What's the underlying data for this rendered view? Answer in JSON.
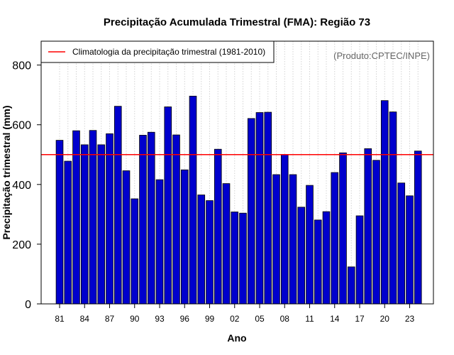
{
  "chart_data": {
    "type": "bar",
    "title": "Precipitação Acumulada Trimestral (FMA): Região 73",
    "xlabel": "Ano",
    "ylabel": "Precipitação trimestral (mm)",
    "ylim": [
      0,
      880
    ],
    "yticks": [
      0,
      200,
      400,
      600,
      800
    ],
    "categories": [
      "81",
      "82",
      "83",
      "84",
      "85",
      "86",
      "87",
      "88",
      "89",
      "90",
      "91",
      "92",
      "93",
      "94",
      "95",
      "96",
      "97",
      "98",
      "99",
      "00",
      "01",
      "02",
      "03",
      "04",
      "05",
      "06",
      "07",
      "08",
      "09",
      "10",
      "11",
      "12",
      "13",
      "14",
      "15",
      "16",
      "17",
      "18",
      "19",
      "20",
      "21",
      "22",
      "23",
      "24"
    ],
    "xtick_labels": [
      "81",
      "84",
      "87",
      "90",
      "93",
      "96",
      "99",
      "02",
      "05",
      "08",
      "11",
      "14",
      "17",
      "20",
      "23"
    ],
    "values": [
      548,
      478,
      580,
      533,
      581,
      533,
      570,
      662,
      446,
      352,
      565,
      575,
      416,
      660,
      566,
      449,
      696,
      365,
      346,
      518,
      403,
      308,
      304,
      621,
      641,
      642,
      433,
      500,
      433,
      324,
      397,
      281,
      309,
      440,
      506,
      124,
      295,
      520,
      481,
      681,
      643,
      405,
      362,
      512
    ],
    "climatology": 500,
    "legend": {
      "label": "Climatologia da precipitação trimestral (1981-2010)",
      "position": "top-left"
    },
    "credit": "(Produto:CPTEC/INPE)",
    "grid": {
      "vertical": true,
      "horizontal": false
    },
    "colors": {
      "bar": "#0000cd",
      "bar_edge": "#000000",
      "climatology": "#ff0000",
      "grid": "#d3d3d3"
    }
  }
}
